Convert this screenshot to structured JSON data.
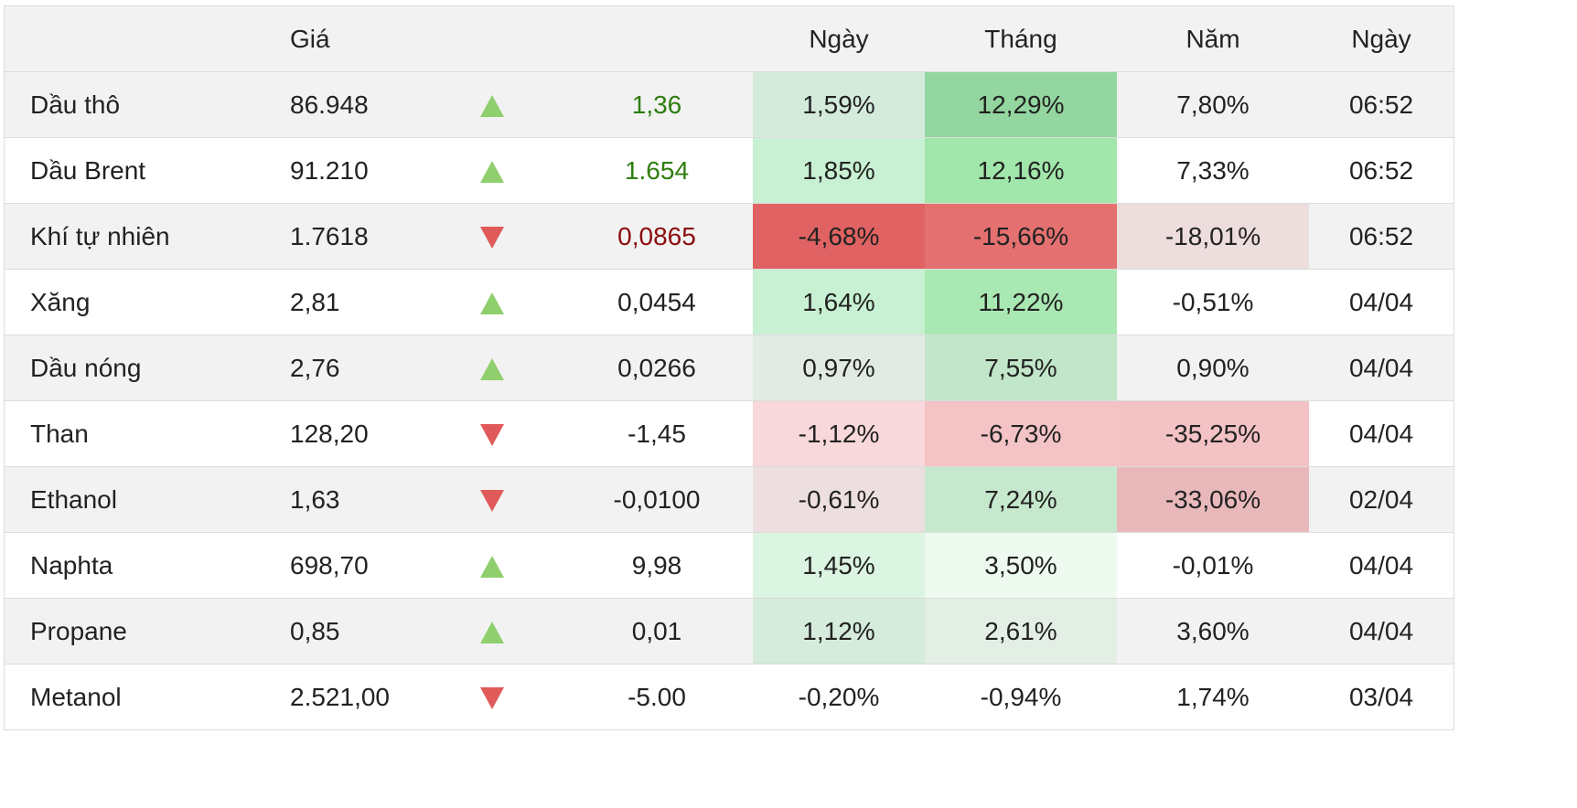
{
  "header": {
    "name": "",
    "price": "Giá",
    "arrow": "",
    "change": "",
    "day": "Ngày",
    "month": "Tháng",
    "year": "Năm",
    "date": "Ngày"
  },
  "rows": [
    {
      "name": "Dầu thô",
      "price": "86.948",
      "direction": "up",
      "change": "1,36",
      "change_style": "up",
      "day": "1,59%",
      "day_bg": "#d4ebdc",
      "month": "12,29%",
      "month_bg": "#93d69f",
      "year": "7,80%",
      "year_bg": "",
      "date": "06:52"
    },
    {
      "name": "Dầu Brent",
      "price": "91.210",
      "direction": "up",
      "change": "1.654",
      "change_style": "up",
      "day": "1,85%",
      "day_bg": "#c8f0d2",
      "month": "12,16%",
      "month_bg": "#a1e6aa",
      "year": "7,33%",
      "year_bg": "",
      "date": "06:52"
    },
    {
      "name": "Khí tự nhiên",
      "price": "1.7618",
      "direction": "down",
      "change": "0,0865",
      "change_style": "down",
      "day": "-4,68%",
      "day_bg": "#e06262",
      "month": "-15,66%",
      "month_bg": "#e47070",
      "year": "-18,01%",
      "year_bg": "#eedddd",
      "date": "06:52"
    },
    {
      "name": "Xăng",
      "price": "2,81",
      "direction": "up",
      "change": "0,0454",
      "change_style": "neutral",
      "day": "1,64%",
      "day_bg": "#c8f0d2",
      "month": "11,22%",
      "month_bg": "#aae8b3",
      "year": "-0,51%",
      "year_bg": "",
      "date": "04/04"
    },
    {
      "name": "Dầu nóng",
      "price": "2,76",
      "direction": "up",
      "change": "0,0266",
      "change_style": "neutral",
      "day": "0,97%",
      "day_bg": "#e1ebe3",
      "month": "7,55%",
      "month_bg": "#c2e6c9",
      "year": "0,90%",
      "year_bg": "",
      "date": "04/04"
    },
    {
      "name": "Than",
      "price": "128,20",
      "direction": "down",
      "change": "-1,45",
      "change_style": "neutral",
      "day": "-1,12%",
      "day_bg": "#f8d8da",
      "month": "-6,73%",
      "month_bg": "#f3c3c5",
      "year": "-35,25%",
      "year_bg": "#f2c2c4",
      "date": "04/04"
    },
    {
      "name": "Ethanol",
      "price": "1,63",
      "direction": "down",
      "change": "-0,0100",
      "change_style": "neutral",
      "day": "-0,61%",
      "day_bg": "#eddfe0",
      "month": "7,24%",
      "month_bg": "#c6e8cc",
      "year": "-33,06%",
      "year_bg": "#e8b8bb",
      "date": "02/04"
    },
    {
      "name": "Naphta",
      "price": "698,70",
      "direction": "up",
      "change": "9,98",
      "change_style": "neutral",
      "day": "1,45%",
      "day_bg": "#dcf5e2",
      "month": "3,50%",
      "month_bg": "#eef9f0",
      "year": "-0,01%",
      "year_bg": "",
      "date": "04/04"
    },
    {
      "name": "Propane",
      "price": "0,85",
      "direction": "up",
      "change": "0,01",
      "change_style": "neutral",
      "day": "1,12%",
      "day_bg": "#d5ebdb",
      "month": "2,61%",
      "month_bg": "#e3eee5",
      "year": "3,60%",
      "year_bg": "",
      "date": "04/04"
    },
    {
      "name": "Metanol",
      "price": "2.521,00",
      "direction": "down",
      "change": "-5.00",
      "change_style": "neutral",
      "day": "-0,20%",
      "day_bg": "",
      "month": "-0,94%",
      "month_bg": "",
      "year": "1,74%",
      "year_bg": "",
      "date": "03/04"
    }
  ],
  "colors": {
    "header_bg": "#f2f2f2",
    "odd_row_bg": "#f2f2f2",
    "even_row_bg": "#ffffff",
    "up_arrow": "#8fcf6e",
    "down_arrow": "#e05a5a",
    "change_up_text": "#2e7d0e",
    "change_down_text": "#8b0d0d"
  },
  "icons": {
    "up": "triangle-up-icon",
    "down": "triangle-down-icon"
  }
}
